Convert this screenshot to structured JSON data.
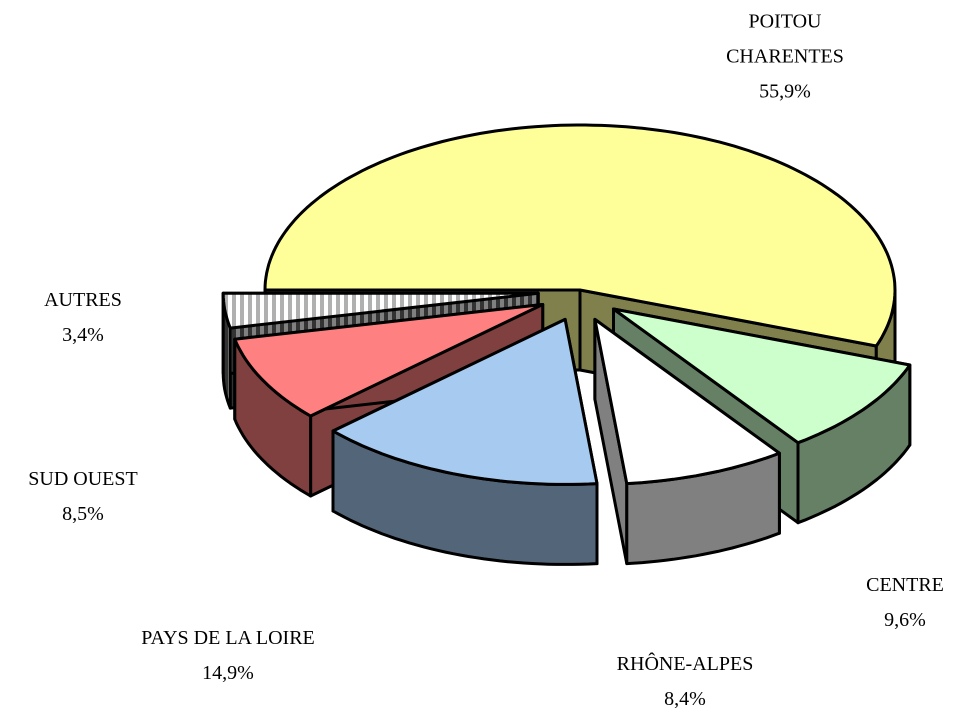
{
  "chart_data": {
    "type": "pie3d",
    "categories": [
      "POITOU CHARENTES",
      "CENTRE",
      "RHÔNE-ALPES",
      "PAYS DE LA LOIRE",
      "SUD OUEST",
      "AUTRES"
    ],
    "values": [
      55.9,
      9.6,
      8.4,
      14.9,
      8.5,
      3.4
    ],
    "value_labels": [
      "55,9%",
      "9,6%",
      "8,4%",
      "14,9%",
      "8,5%",
      "3,4%"
    ],
    "colors": [
      "#ffff99",
      "#ccffcc",
      "#ffffff",
      "#a6caf0",
      "#ff8080",
      "hatch"
    ]
  }
}
